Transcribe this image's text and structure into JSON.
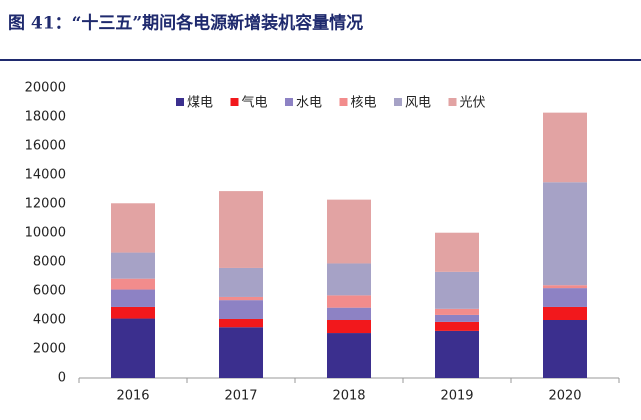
{
  "chart_data": {
    "type": "bar",
    "stacked": true,
    "title": "图 41：“十三五”期间各电源新增装机容量情况",
    "categories": [
      "2016",
      "2017",
      "2018",
      "2019",
      "2020"
    ],
    "series": [
      {
        "name": "煤电",
        "color": "#3b2f8e",
        "values": [
          4100,
          3500,
          3100,
          3250,
          4000
        ]
      },
      {
        "name": "气电",
        "color": "#f2181c",
        "values": [
          800,
          570,
          900,
          620,
          900
        ]
      },
      {
        "name": "水电",
        "color": "#8d82c4",
        "values": [
          1200,
          1300,
          850,
          480,
          1300
        ]
      },
      {
        "name": "核电",
        "color": "#f28c8c",
        "values": [
          750,
          220,
          850,
          420,
          200
        ]
      },
      {
        "name": "风电",
        "color": "#a6a2c6",
        "values": [
          1800,
          2000,
          2200,
          2550,
          7100
        ]
      },
      {
        "name": "光伏",
        "color": "#e2a3a3",
        "values": [
          3400,
          5300,
          4400,
          2700,
          4800
        ]
      }
    ],
    "ylim": [
      0,
      20000
    ],
    "yticks": [
      0,
      2000,
      4000,
      6000,
      8000,
      10000,
      12000,
      14000,
      16000,
      18000,
      20000
    ]
  }
}
